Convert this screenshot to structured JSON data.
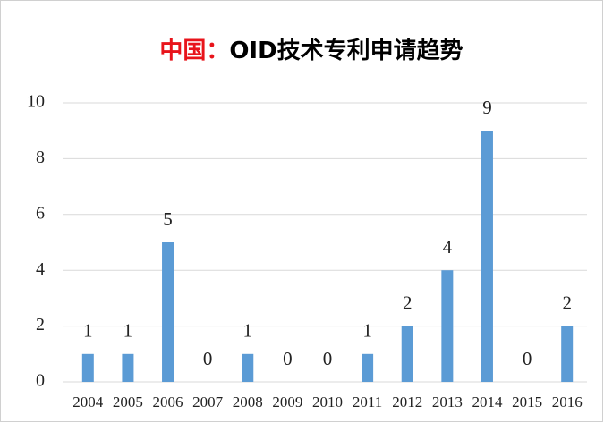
{
  "chart_data": {
    "type": "bar",
    "title_parts": [
      {
        "text": "中国：",
        "color": "#e8141b"
      },
      {
        "text": "OID技术专利申请趋势",
        "color": "#000000"
      }
    ],
    "categories": [
      "2004",
      "2005",
      "2006",
      "2007",
      "2008",
      "2009",
      "2010",
      "2011",
      "2012",
      "2013",
      "2014",
      "2015",
      "2016"
    ],
    "values": [
      1,
      1,
      5,
      0,
      1,
      0,
      0,
      1,
      2,
      4,
      9,
      0,
      2
    ],
    "color": "#5b9bd5",
    "ylim": [
      0,
      10
    ],
    "yticks": [
      0,
      2,
      4,
      6,
      8,
      10
    ],
    "grid": true
  }
}
